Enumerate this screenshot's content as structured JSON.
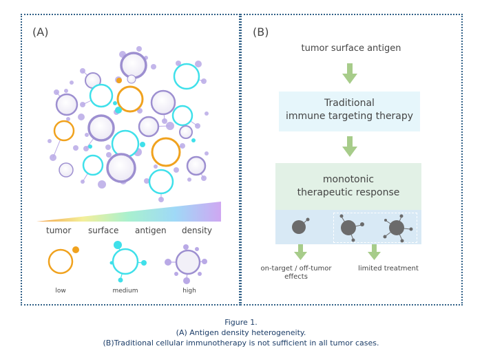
{
  "panel_a": {
    "label": "(A)",
    "gradient_words": [
      "tumor",
      "surface",
      "antigen",
      "density"
    ],
    "levels": [
      "low",
      "medium",
      "high"
    ],
    "colors": {
      "low": "#f0a21e",
      "medium": "#3fe0ea",
      "high": "#9d8fd0",
      "small_dots": "#b9a9e6"
    }
  },
  "panel_b": {
    "label": "(B)",
    "antigen_text": "tumor surface antigen",
    "therapy_box": {
      "line1": "Traditional",
      "line2": "immune targeting therapy"
    },
    "response_box": {
      "line1": "monotonic",
      "line2": "therapeutic response"
    },
    "outcome_left": {
      "line1": "on-target / off-tumor",
      "line2": "effects"
    },
    "outcome_right": "limited treatment",
    "arrow_color": "#a7cc8a",
    "cell_color": "#6b6b6b"
  },
  "caption": {
    "line1": "Figure 1.",
    "line2": "(A) Antigen density heterogeneity.",
    "line3": "(B)Traditional cellular immunotherapy is not sufficient in all tumor cases."
  }
}
